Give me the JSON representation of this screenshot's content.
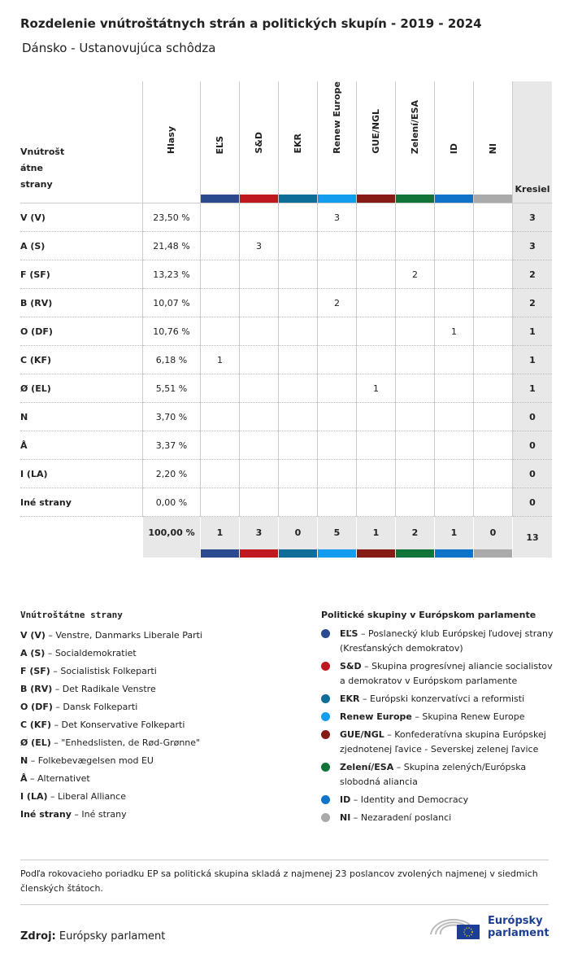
{
  "title": "Rozdelenie vnútroštátnych strán a politických skupín - 2019 - 2024",
  "subtitle": "Dánsko - Ustanovujúca schôdza",
  "table": {
    "party_header": "Vnútrošt átne strany",
    "votes_header": "Hlasy",
    "seats_header": "Kresiel",
    "groups": [
      {
        "label": "EĽS",
        "color": "#2a4a8e"
      },
      {
        "label": "S&D",
        "color": "#c0181f"
      },
      {
        "label": "EKR",
        "color": "#0f6e98"
      },
      {
        "label": "Renew Europe",
        "color": "#139dee"
      },
      {
        "label": "GUE/NGL",
        "color": "#861b16"
      },
      {
        "label": "Zelení/ESA",
        "color": "#107338"
      },
      {
        "label": "ID",
        "color": "#0e73c9"
      },
      {
        "label": "NI",
        "color": "#aaaaaa"
      }
    ],
    "rows": [
      {
        "party": "V (V)",
        "votes": "23,50 %",
        "seats": [
          "",
          "",
          "",
          "3",
          "",
          "",
          "",
          ""
        ],
        "total": "3"
      },
      {
        "party": "A (S)",
        "votes": "21,48 %",
        "seats": [
          "",
          "3",
          "",
          "",
          "",
          "",
          "",
          ""
        ],
        "total": "3"
      },
      {
        "party": "F (SF)",
        "votes": "13,23 %",
        "seats": [
          "",
          "",
          "",
          "",
          "",
          "2",
          "",
          ""
        ],
        "total": "2"
      },
      {
        "party": "B (RV)",
        "votes": "10,07 %",
        "seats": [
          "",
          "",
          "",
          "2",
          "",
          "",
          "",
          ""
        ],
        "total": "2"
      },
      {
        "party": "O (DF)",
        "votes": "10,76 %",
        "seats": [
          "",
          "",
          "",
          "",
          "",
          "",
          "1",
          ""
        ],
        "total": "1"
      },
      {
        "party": "C (KF)",
        "votes": "6,18 %",
        "seats": [
          "1",
          "",
          "",
          "",
          "",
          "",
          "",
          ""
        ],
        "total": "1"
      },
      {
        "party": "Ø (EL)",
        "votes": "5,51 %",
        "seats": [
          "",
          "",
          "",
          "",
          "1",
          "",
          "",
          ""
        ],
        "total": "1"
      },
      {
        "party": "N",
        "votes": "3,70 %",
        "seats": [
          "",
          "",
          "",
          "",
          "",
          "",
          "",
          ""
        ],
        "total": "0"
      },
      {
        "party": "Å",
        "votes": "3,37 %",
        "seats": [
          "",
          "",
          "",
          "",
          "",
          "",
          "",
          ""
        ],
        "total": "0"
      },
      {
        "party": "I (LA)",
        "votes": "2,20 %",
        "seats": [
          "",
          "",
          "",
          "",
          "",
          "",
          "",
          ""
        ],
        "total": "0"
      },
      {
        "party": "Iné strany",
        "votes": "0,00 %",
        "seats": [
          "",
          "",
          "",
          "",
          "",
          "",
          "",
          ""
        ],
        "total": "0"
      }
    ],
    "totals": {
      "votes": "100,00 %",
      "seats": [
        "1",
        "3",
        "0",
        "5",
        "1",
        "2",
        "1",
        "0"
      ],
      "total": "13"
    }
  },
  "national_legend": {
    "heading": "Vnútroštátne strany",
    "items": [
      {
        "abbr": "V (V)",
        "name": "Venstre, Danmarks Liberale Parti"
      },
      {
        "abbr": "A (S)",
        "name": "Socialdemokratiet"
      },
      {
        "abbr": "F (SF)",
        "name": "Socialistisk Folkeparti"
      },
      {
        "abbr": "B (RV)",
        "name": "Det Radikale Venstre"
      },
      {
        "abbr": "O (DF)",
        "name": "Dansk Folkeparti"
      },
      {
        "abbr": "C (KF)",
        "name": "Det Konservative Folkeparti"
      },
      {
        "abbr": "Ø (EL)",
        "name": "\"Enhedslisten, de Rød-Grønne\""
      },
      {
        "abbr": "N",
        "name": "Folkebevægelsen mod EU"
      },
      {
        "abbr": "Å",
        "name": "Alternativet"
      },
      {
        "abbr": "I (LA)",
        "name": "Liberal Alliance"
      },
      {
        "abbr": "Iné strany",
        "name": "Iné strany"
      }
    ]
  },
  "group_legend": {
    "heading": "Politické skupiny v Európskom parlamente",
    "items": [
      {
        "abbr": "EĽS",
        "name": "Poslanecký klub Európskej ľudovej strany (Kresťanských demokratov)",
        "color": "#2a4a8e"
      },
      {
        "abbr": "S&D",
        "name": "Skupina progresívnej aliancie socialistov a demokratov v Európskom parlamente",
        "color": "#c0181f"
      },
      {
        "abbr": "EKR",
        "name": "Európski konzervatívci a reformisti",
        "color": "#0f6e98"
      },
      {
        "abbr": "Renew Europe",
        "name": "Skupina Renew Europe",
        "color": "#139dee"
      },
      {
        "abbr": "GUE/NGL",
        "name": "Konfederatívna skupina Európskej zjednotenej ľavice - Severskej zelenej ľavice",
        "color": "#861b16"
      },
      {
        "abbr": "Zelení/ESA",
        "name": "Skupina zelených/Európska slobodná aliancia",
        "color": "#107338"
      },
      {
        "abbr": "ID",
        "name": "Identity and Democracy",
        "color": "#0e73c9"
      },
      {
        "abbr": "NI",
        "name": "Nezaradení poslanci",
        "color": "#aaaaaa"
      }
    ]
  },
  "note": "Podľa rokovacieho poriadku EP sa politická skupina skladá z najmenej 23 poslancov zvolených najmenej v siedmich členských štátoch.",
  "source": {
    "label": "Zdroj:",
    "value": "Európsky parlament"
  },
  "logo": {
    "line1": "Európsky",
    "line2": "parlament"
  }
}
